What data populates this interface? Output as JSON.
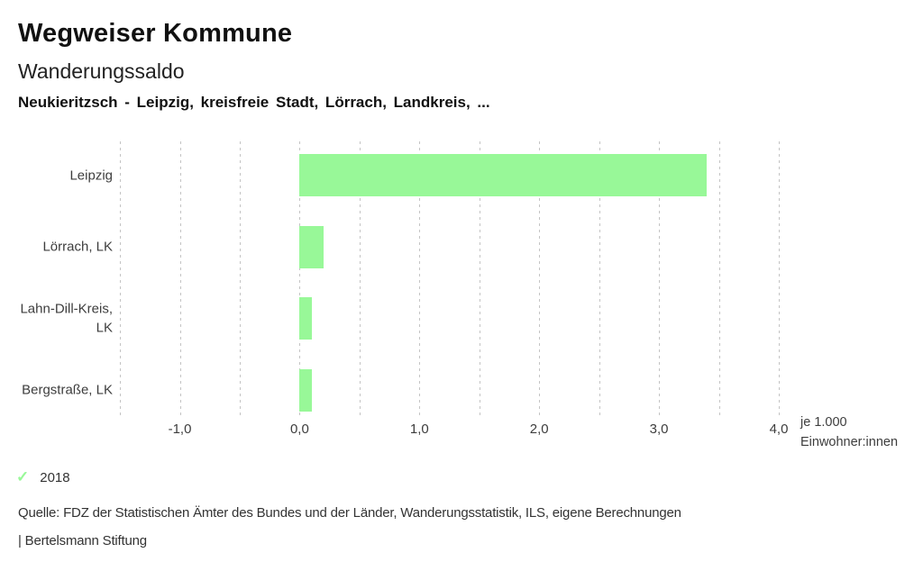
{
  "header": {
    "title": "Wegweiser Kommune",
    "subtitle": "Wanderungssaldo",
    "comparison": "Neukieritzsch - Leipzig, kreisfreie Stadt, Lörrach, Landkreis, ..."
  },
  "chart_data": {
    "type": "bar",
    "orientation": "horizontal",
    "title": "Wanderungssaldo",
    "subtitle": "Neukieritzsch - Leipzig, kreisfreie Stadt, Lörrach, Landkreis, ...",
    "categories": [
      "Leipzig",
      "Lörrach, LK",
      "Lahn-Dill-Kreis, LK",
      "Bergstraße, LK"
    ],
    "series": [
      {
        "name": "2018",
        "values": [
          3.4,
          0.2,
          0.1,
          0.1
        ]
      }
    ],
    "values": [
      3.4,
      0.2,
      0.1,
      0.1
    ],
    "xlabel": "je 1.000 Einwohner:innen",
    "xlim": [
      -1.5,
      4.0
    ],
    "gridline_step": 0.5,
    "x_tick_values": [
      -1,
      0,
      1,
      2,
      3,
      4
    ],
    "x_tick_labels": [
      "-1,0",
      "0,0",
      "1,0",
      "2,0",
      "3,0",
      "4,0"
    ],
    "grid": true,
    "legend_position": "bottom-left",
    "bar_color": "#98F898",
    "grid_color": "#C4C4C4"
  },
  "axis": {
    "unit_line1": "je 1.000",
    "unit_line2": "Einwohner:innen"
  },
  "legend": {
    "check_icon": "✓",
    "year": "2018"
  },
  "footer": {
    "source": "Quelle: FDZ der Statistischen Ämter des Bundes und der Länder, Wanderungsstatistik, ILS, eigene Berechnungen",
    "attribution": "| Bertelsmann Stiftung"
  }
}
